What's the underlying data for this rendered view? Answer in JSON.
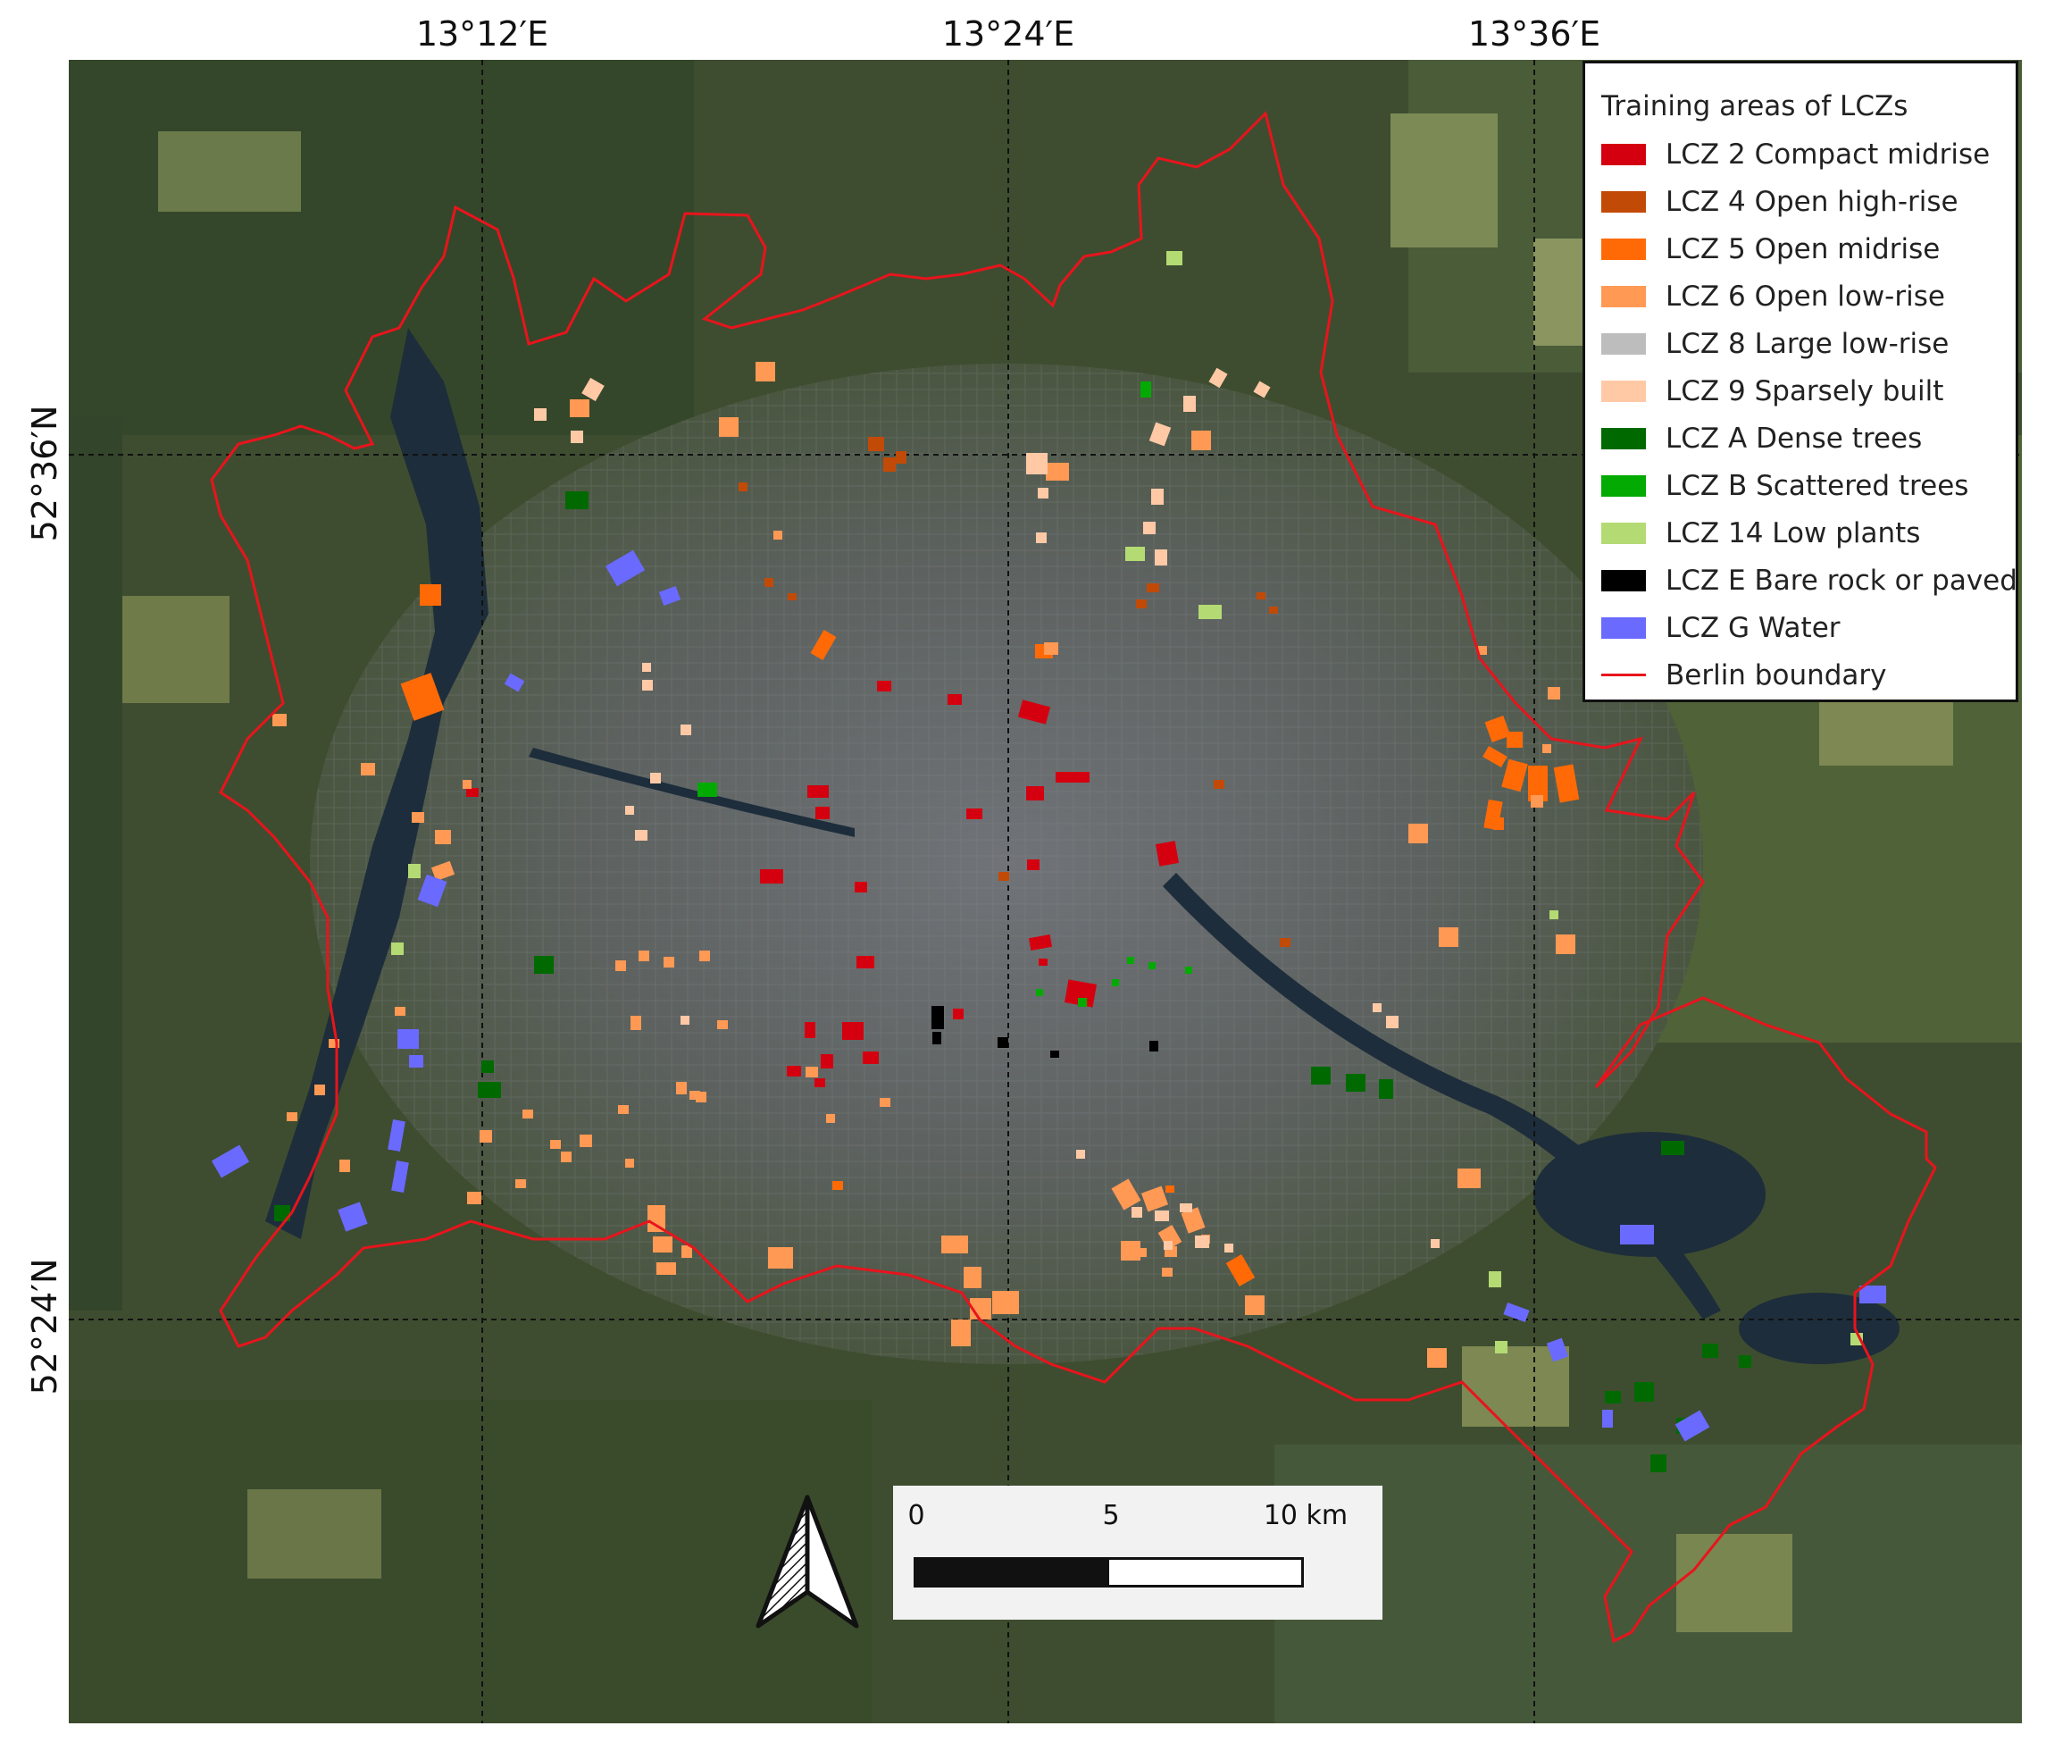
{
  "coordinates": {
    "top": [
      "13°12′E",
      "13°24′E",
      "13°36′E"
    ],
    "left": [
      "52°36′N",
      "52°24′N"
    ]
  },
  "legend": {
    "title": "Training areas of LCZs",
    "items": [
      {
        "label": "LCZ 2 Compact midrise",
        "color": "#d40010"
      },
      {
        "label": "LCZ 4 Open high-rise",
        "color": "#c24a07"
      },
      {
        "label": "LCZ 5 Open midrise",
        "color": "#ff6a06"
      },
      {
        "label": "LCZ 6 Open low-rise",
        "color": "#ff9954"
      },
      {
        "label": "LCZ 8 Large low-rise",
        "color": "#bdbdbd"
      },
      {
        "label": "LCZ 9 Sparsely built",
        "color": "#ffc9a6"
      },
      {
        "label": "LCZ A Dense trees",
        "color": "#006a00"
      },
      {
        "label": "LCZ B Scattered trees",
        "color": "#02aa02"
      },
      {
        "label": "LCZ 14 Low plants",
        "color": "#b4da74"
      },
      {
        "label": "LCZ E Bare rock or paved",
        "color": "#000000"
      },
      {
        "label": "LCZ G Water",
        "color": "#6a6afe"
      },
      {
        "label": "Berlin boundary",
        "color": "#e8141c",
        "kind": "line"
      }
    ]
  },
  "scale_bar": {
    "labels": [
      "0",
      "5",
      "10 km"
    ]
  },
  "north_arrow": {
    "icon": "north-arrow-icon"
  }
}
